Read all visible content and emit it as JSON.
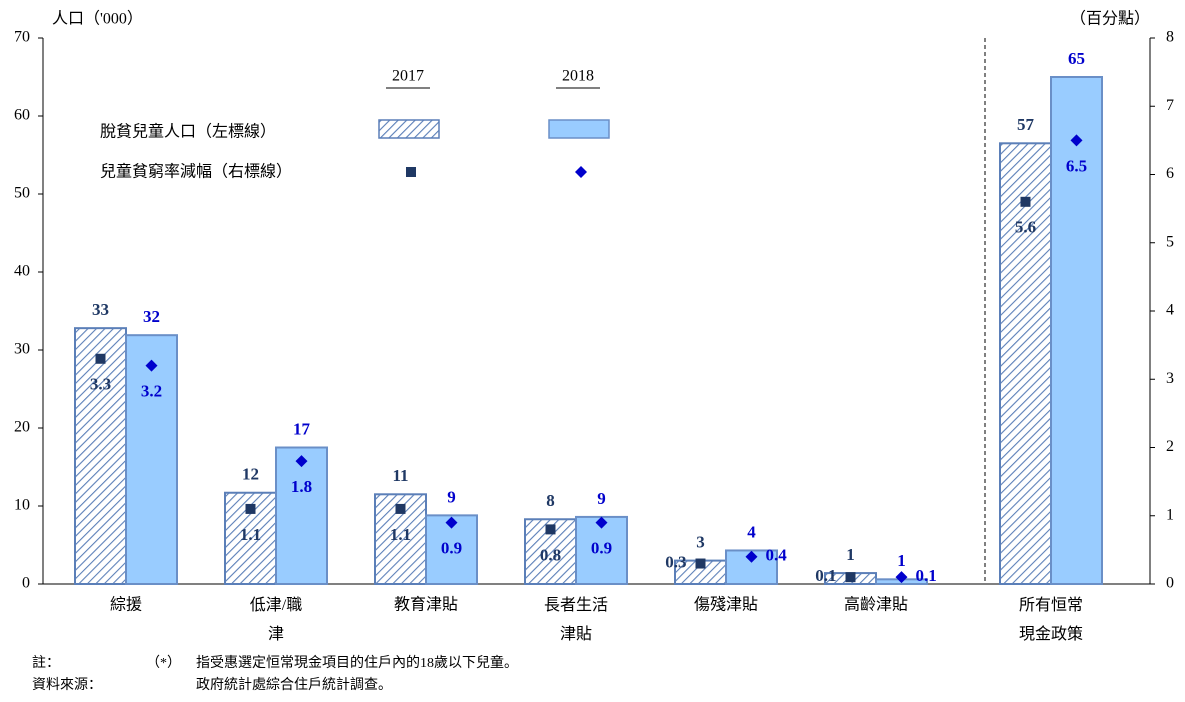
{
  "chart_data": {
    "type": "bar",
    "ylabel": "人口（'000）",
    "y2label": "（百分點）",
    "categories": [
      "綜援",
      "低津/職津",
      "教育津貼",
      "長者生活津貼",
      "傷殘津貼",
      "高齡津貼",
      "所有恒常現金政策"
    ],
    "ylim": [
      0,
      70
    ],
    "yticks": [
      0,
      10,
      20,
      30,
      40,
      50,
      60,
      70
    ],
    "y2lim": [
      0,
      8
    ],
    "y2ticks": [
      0,
      1,
      2,
      3,
      4,
      5,
      6,
      7,
      8
    ],
    "legend_rows": [
      "脫貧兒童人口（左標線）",
      "兒童貧窮率減幅（右標線）"
    ],
    "series": [
      {
        "name": "2017",
        "kind": "bar",
        "hatch": true,
        "color": "#5b7fb8",
        "label_color": "#1f3864",
        "values": [
          32.8,
          11.7,
          11.5,
          8.3,
          3.0,
          1.4,
          56.5
        ],
        "value_labels": [
          "33",
          "12",
          "11",
          "8",
          "3",
          "1",
          "57"
        ]
      },
      {
        "name": "2018",
        "kind": "bar",
        "hatch": false,
        "color": "#99ccff",
        "label_color": "#0000cc",
        "values": [
          31.9,
          17.5,
          8.8,
          8.6,
          4.3,
          0.6,
          65.0
        ],
        "value_labels": [
          "32",
          "17",
          "9",
          "9",
          "4",
          "1",
          "65"
        ]
      },
      {
        "name": "2017",
        "kind": "marker",
        "marker": "square",
        "axis": "y2",
        "color": "#1f3864",
        "values": [
          3.3,
          1.1,
          1.1,
          0.8,
          0.3,
          0.1,
          5.6
        ]
      },
      {
        "name": "2018",
        "kind": "marker",
        "marker": "diamond",
        "axis": "y2",
        "color": "#0000cc",
        "values": [
          3.2,
          1.8,
          0.9,
          0.9,
          0.4,
          0.1,
          6.5
        ]
      }
    ],
    "notes": {
      "note_label": "註：",
      "note_mark": "（*）",
      "note_text": "指受惠選定恒常現金項目的住戶內的18歲以下兒童。",
      "source_label": "資料來源：",
      "source_text": "政府統計處綜合住戶統計調查。"
    }
  }
}
